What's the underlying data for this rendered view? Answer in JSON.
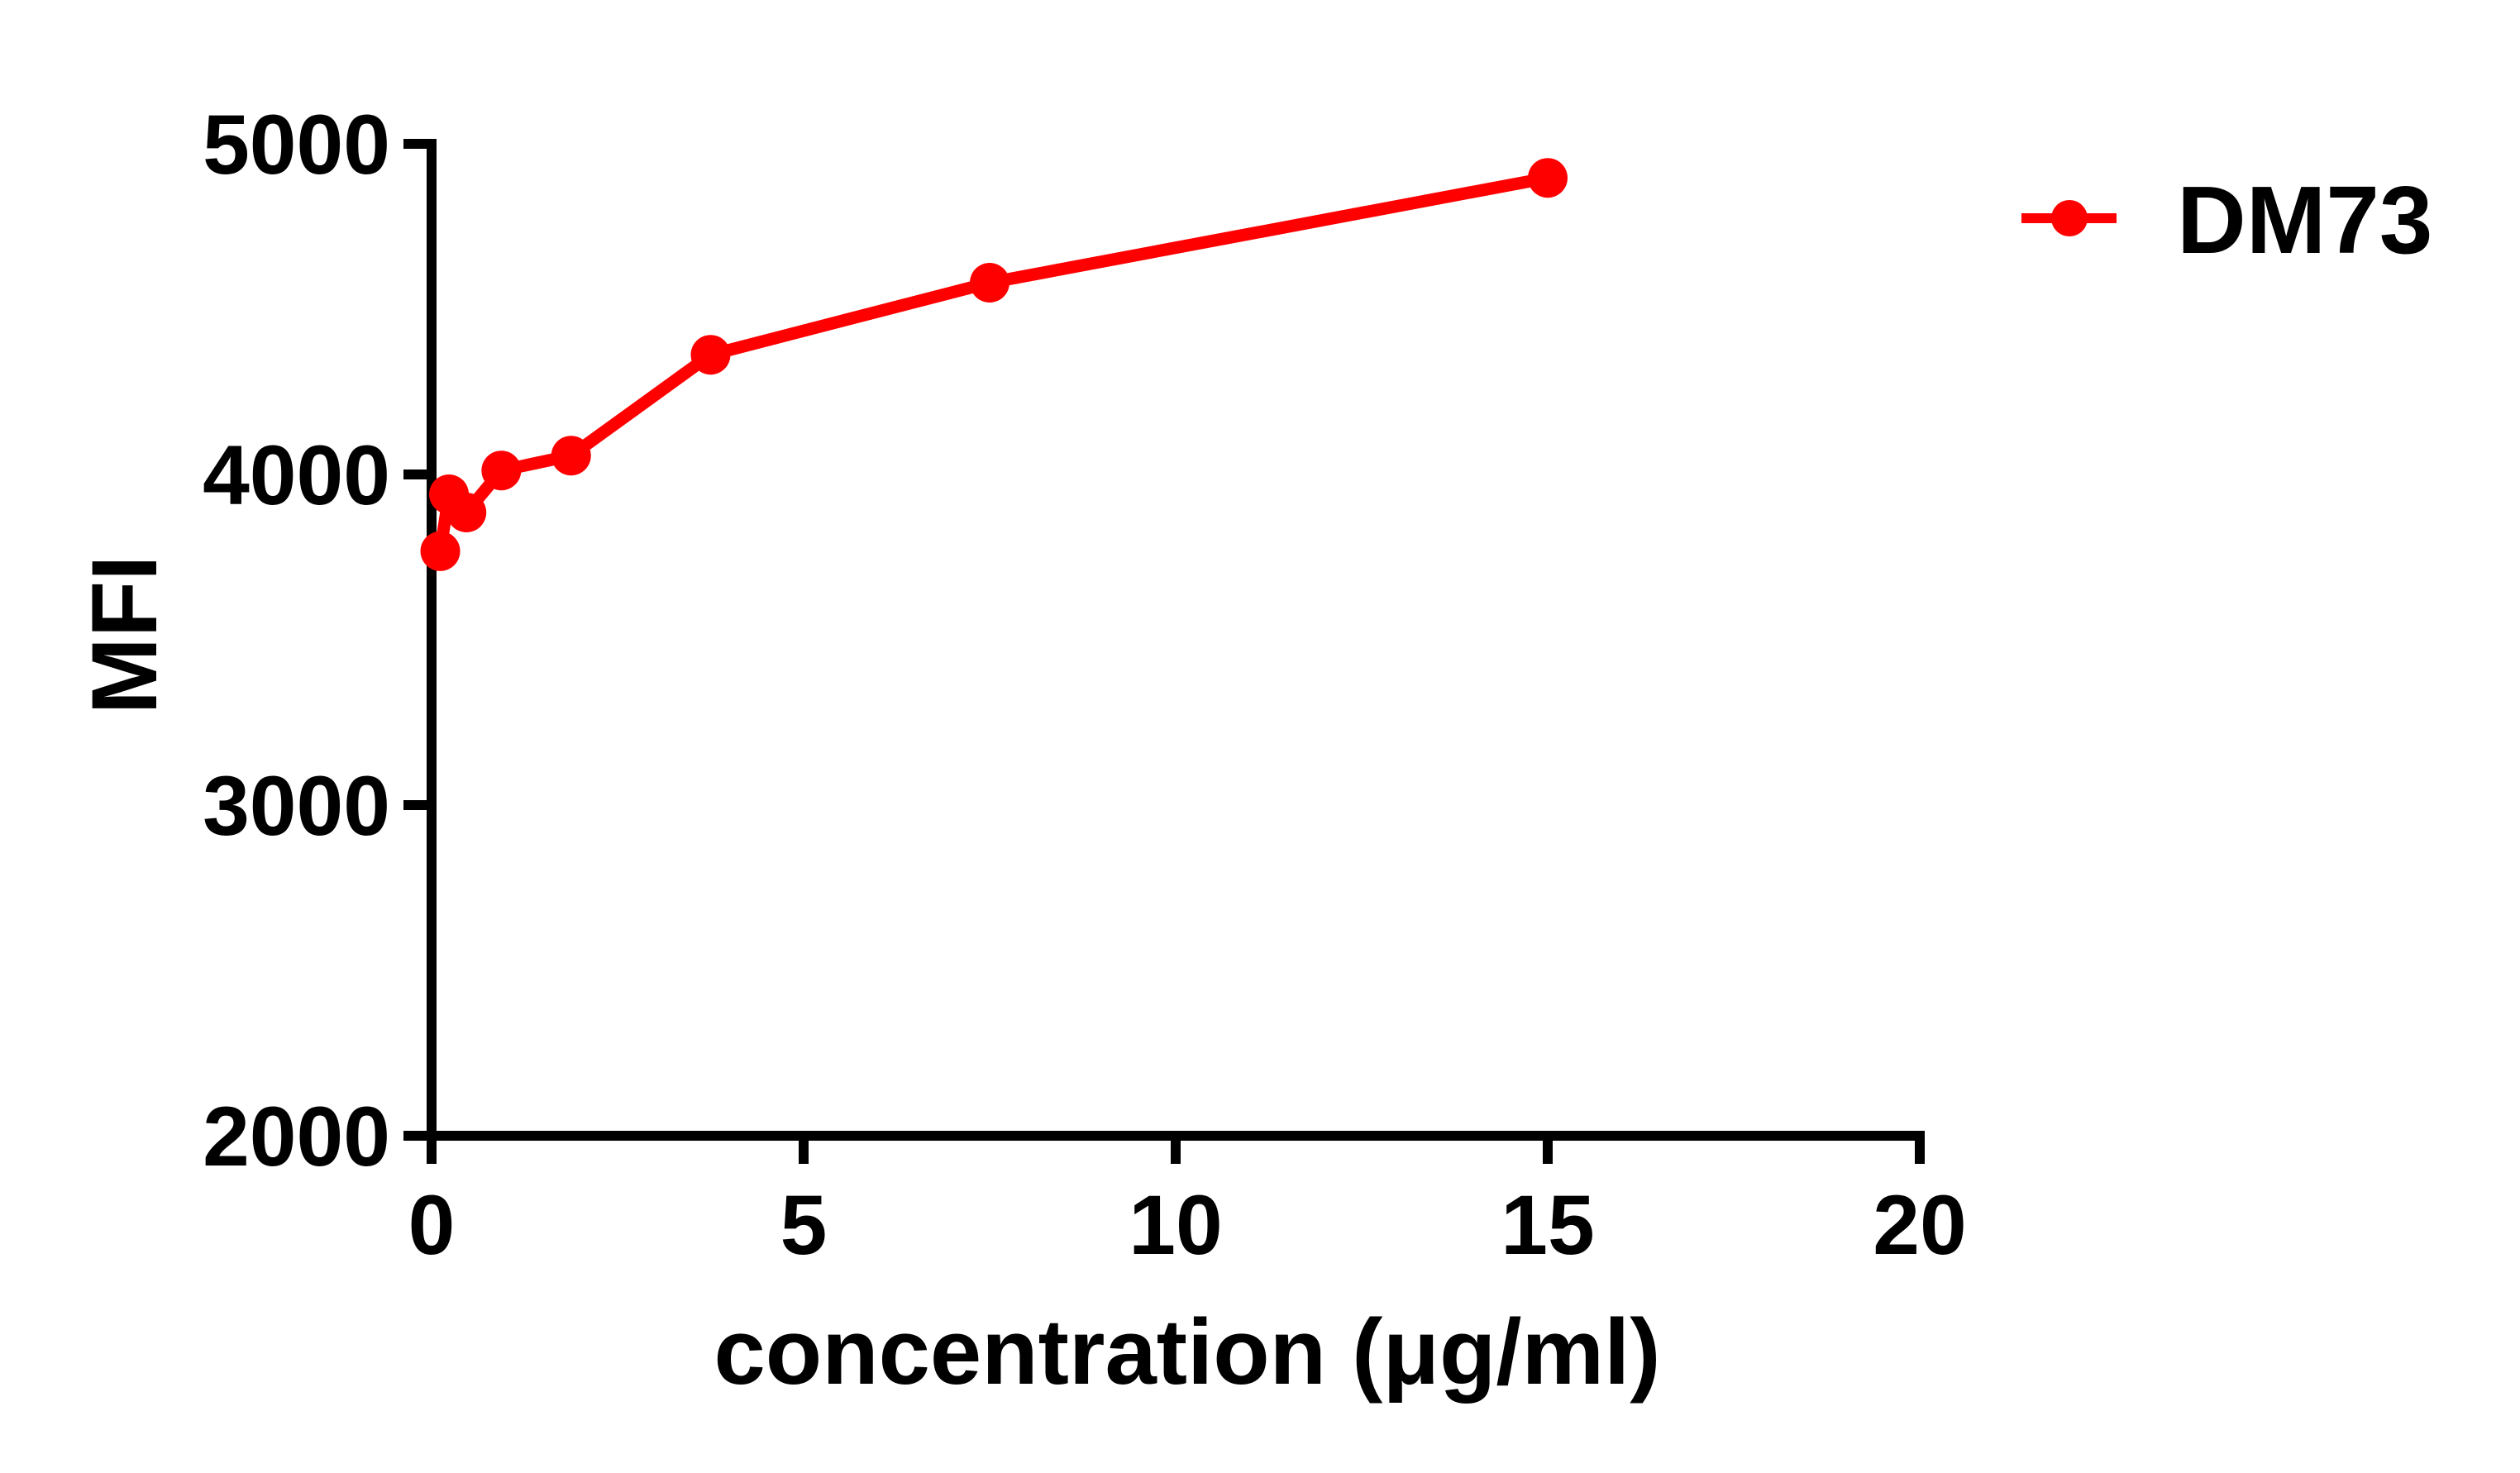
{
  "chart_data": {
    "type": "line",
    "title": "",
    "xlabel": "concentration (μg/ml)",
    "ylabel": "MFI",
    "xlim": [
      0,
      20
    ],
    "ylim": [
      2000,
      5000
    ],
    "xticks": [
      0,
      5,
      10,
      15,
      20
    ],
    "yticks": [
      2000,
      3000,
      4000,
      5000
    ],
    "xtick_labels": [
      "0",
      "5",
      "10",
      "15",
      "20"
    ],
    "ytick_labels": [
      "2000",
      "3000",
      "4000",
      "5000"
    ],
    "grid": false,
    "legend_position": "top-right",
    "series": [
      {
        "name": "DM73",
        "color": "#ff0000",
        "marker": "circle",
        "x": [
          0.117,
          0.234,
          0.469,
          0.9375,
          1.875,
          3.75,
          7.5,
          15
        ],
        "y": [
          3768,
          3940,
          3885,
          4012,
          4057,
          4362,
          4580,
          4897
        ]
      }
    ]
  },
  "legend": {
    "items": [
      {
        "label": "DM73",
        "color": "#ff0000"
      }
    ]
  },
  "colors": {
    "series": "#ff0000",
    "axis": "#000000",
    "background": "#ffffff"
  }
}
